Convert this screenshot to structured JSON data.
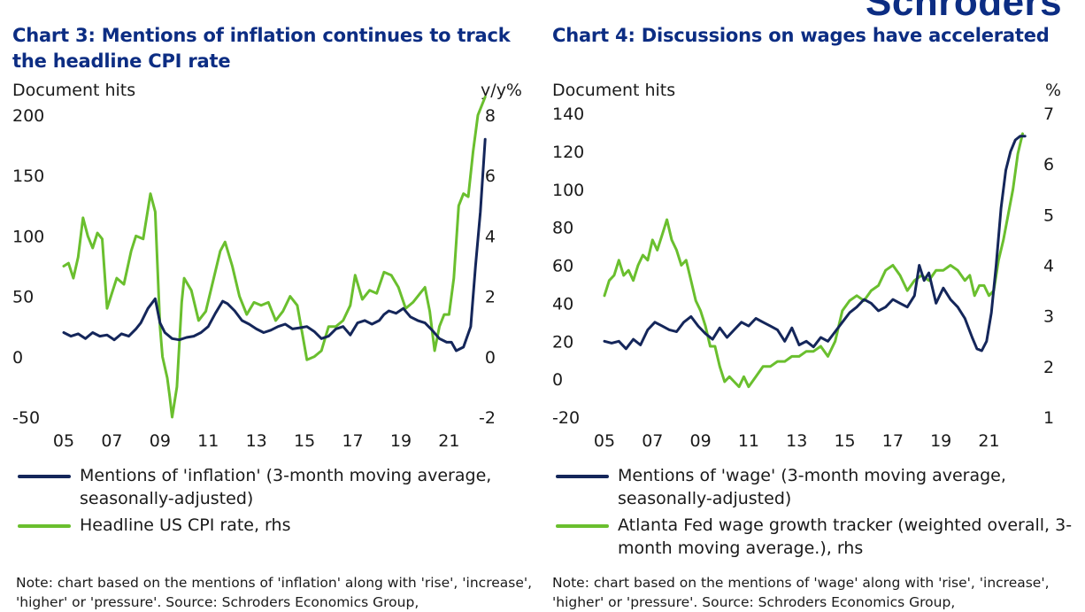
{
  "brand": {
    "logo_text": "Schroders"
  },
  "colors": {
    "title": "#0c2d83",
    "navy": "#14265a",
    "green": "#6abf2e"
  },
  "chart_data": [
    {
      "type": "line",
      "title": "Chart 3: Mentions of inflation continues to track the headline CPI rate",
      "ylabel_left": "Document hits",
      "ylabel_right": "y/y%",
      "ylim_left": [
        -50,
        200
      ],
      "ylim_right": [
        -2,
        8
      ],
      "yticks_left": [
        -50,
        0,
        50,
        100,
        150,
        200
      ],
      "yticks_right": [
        -2,
        0,
        2,
        4,
        6,
        8
      ],
      "xlim": [
        2005,
        2022.75
      ],
      "xticks": [
        "05",
        "07",
        "09",
        "11",
        "13",
        "15",
        "17",
        "19",
        "21"
      ],
      "xtick_values": [
        2005,
        2007,
        2009,
        2011,
        2013,
        2015,
        2017,
        2019,
        2021
      ],
      "series": [
        {
          "name": "Mentions of 'inflation' (3-month moving average, seasonally-adjusted)",
          "axis": "left",
          "color": "#14265a",
          "x": [
            2005.0,
            2005.3,
            2005.6,
            2005.9,
            2006.2,
            2006.5,
            2006.8,
            2007.1,
            2007.4,
            2007.7,
            2008.0,
            2008.2,
            2008.5,
            2008.8,
            2009.0,
            2009.2,
            2009.5,
            2009.8,
            2010.1,
            2010.4,
            2010.7,
            2011.0,
            2011.3,
            2011.6,
            2011.8,
            2012.1,
            2012.4,
            2012.7,
            2013.0,
            2013.3,
            2013.6,
            2013.9,
            2014.2,
            2014.5,
            2014.8,
            2015.1,
            2015.4,
            2015.7,
            2016.0,
            2016.3,
            2016.6,
            2016.9,
            2017.2,
            2017.5,
            2017.8,
            2018.1,
            2018.3,
            2018.5,
            2018.8,
            2019.1,
            2019.4,
            2019.7,
            2020.0,
            2020.3,
            2020.6,
            2020.9,
            2021.1,
            2021.3,
            2021.6,
            2021.9,
            2022.1,
            2022.3,
            2022.5
          ],
          "values": [
            20,
            17,
            19,
            15,
            20,
            17,
            18,
            14,
            19,
            17,
            23,
            28,
            40,
            48,
            28,
            20,
            15,
            14,
            16,
            17,
            20,
            25,
            36,
            46,
            44,
            38,
            30,
            27,
            23,
            20,
            22,
            25,
            27,
            23,
            24,
            25,
            21,
            15,
            17,
            23,
            25,
            18,
            28,
            30,
            27,
            30,
            35,
            38,
            36,
            40,
            33,
            30,
            28,
            22,
            15,
            12,
            12,
            5,
            8,
            25,
            75,
            120,
            180
          ]
        },
        {
          "name": "Headline US CPI rate, rhs",
          "axis": "right",
          "color": "#6abf2e",
          "x": [
            2005.0,
            2005.2,
            2005.4,
            2005.6,
            2005.8,
            2006.0,
            2006.2,
            2006.4,
            2006.6,
            2006.8,
            2007.0,
            2007.2,
            2007.5,
            2007.8,
            2008.0,
            2008.3,
            2008.6,
            2008.8,
            2009.0,
            2009.1,
            2009.3,
            2009.4,
            2009.5,
            2009.7,
            2009.9,
            2010.0,
            2010.3,
            2010.6,
            2010.9,
            2011.2,
            2011.5,
            2011.7,
            2012.0,
            2012.3,
            2012.6,
            2012.9,
            2013.2,
            2013.5,
            2013.8,
            2014.1,
            2014.4,
            2014.7,
            2014.9,
            2015.1,
            2015.4,
            2015.7,
            2016.0,
            2016.3,
            2016.6,
            2016.9,
            2017.1,
            2017.4,
            2017.7,
            2018.0,
            2018.3,
            2018.6,
            2018.9,
            2019.2,
            2019.5,
            2019.8,
            2020.0,
            2020.2,
            2020.4,
            2020.6,
            2020.8,
            2021.0,
            2021.2,
            2021.4,
            2021.6,
            2021.8,
            2022.0,
            2022.2,
            2022.5
          ],
          "values": [
            3.0,
            3.1,
            2.6,
            3.3,
            4.6,
            4.0,
            3.6,
            4.1,
            3.9,
            1.6,
            2.1,
            2.6,
            2.4,
            3.5,
            4.0,
            3.9,
            5.4,
            4.8,
            1.0,
            0.0,
            -0.7,
            -1.3,
            -2.0,
            -1.0,
            1.8,
            2.6,
            2.2,
            1.2,
            1.5,
            2.5,
            3.5,
            3.8,
            3.0,
            2.0,
            1.4,
            1.8,
            1.7,
            1.8,
            1.2,
            1.5,
            2.0,
            1.7,
            0.8,
            -0.1,
            0.0,
            0.2,
            1.0,
            1.0,
            1.2,
            1.7,
            2.7,
            1.9,
            2.2,
            2.1,
            2.8,
            2.7,
            2.3,
            1.6,
            1.8,
            2.1,
            2.3,
            1.5,
            0.2,
            1.0,
            1.4,
            1.4,
            2.6,
            5.0,
            5.4,
            5.3,
            6.8,
            8.0,
            8.6
          ]
        }
      ]
    },
    {
      "type": "line",
      "title": "Chart 4: Discussions on wages have accelerated",
      "ylabel_left": "Document hits",
      "ylabel_right": "%",
      "ylim_left": [
        -20,
        140
      ],
      "ylim_right": [
        1,
        7
      ],
      "yticks_left": [
        -20,
        0,
        20,
        40,
        60,
        80,
        100,
        120,
        140
      ],
      "yticks_right": [
        1,
        2,
        3,
        4,
        5,
        6,
        7
      ],
      "xlim": [
        2005,
        2022.75
      ],
      "xticks": [
        "05",
        "07",
        "09",
        "11",
        "13",
        "15",
        "17",
        "19",
        "21"
      ],
      "xtick_values": [
        2005,
        2007,
        2009,
        2011,
        2013,
        2015,
        2017,
        2019,
        2021
      ],
      "series": [
        {
          "name": "Mentions of 'wage' (3-month moving average, seasonally-adjusted)",
          "axis": "left",
          "color": "#14265a",
          "x": [
            2005.0,
            2005.3,
            2005.6,
            2005.9,
            2006.2,
            2006.5,
            2006.8,
            2007.1,
            2007.4,
            2007.7,
            2008.0,
            2008.3,
            2008.6,
            2008.9,
            2009.2,
            2009.5,
            2009.8,
            2010.1,
            2010.4,
            2010.7,
            2011.0,
            2011.3,
            2011.6,
            2011.9,
            2012.2,
            2012.5,
            2012.8,
            2013.1,
            2013.4,
            2013.7,
            2014.0,
            2014.3,
            2014.6,
            2014.9,
            2015.2,
            2015.5,
            2015.8,
            2016.1,
            2016.4,
            2016.7,
            2017.0,
            2017.3,
            2017.6,
            2017.9,
            2018.1,
            2018.3,
            2018.5,
            2018.8,
            2019.1,
            2019.4,
            2019.7,
            2020.0,
            2020.3,
            2020.5,
            2020.7,
            2020.9,
            2021.1,
            2021.3,
            2021.5,
            2021.7,
            2021.9,
            2022.1,
            2022.3,
            2022.5
          ],
          "values": [
            20,
            19,
            20,
            16,
            21,
            18,
            26,
            30,
            28,
            26,
            25,
            30,
            33,
            28,
            24,
            21,
            27,
            22,
            26,
            30,
            28,
            32,
            30,
            28,
            26,
            20,
            27,
            18,
            20,
            17,
            22,
            20,
            25,
            30,
            35,
            38,
            42,
            40,
            36,
            38,
            42,
            40,
            38,
            44,
            60,
            52,
            56,
            40,
            48,
            42,
            38,
            32,
            22,
            16,
            15,
            20,
            35,
            60,
            90,
            110,
            120,
            126,
            128,
            128
          ]
        },
        {
          "name": "Atlanta Fed wage growth tracker (weighted overall, 3-month moving average.), rhs",
          "axis": "right",
          "color": "#6abf2e",
          "x": [
            2005.0,
            2005.2,
            2005.4,
            2005.6,
            2005.8,
            2006.0,
            2006.2,
            2006.4,
            2006.6,
            2006.8,
            2007.0,
            2007.2,
            2007.4,
            2007.6,
            2007.8,
            2008.0,
            2008.2,
            2008.4,
            2008.6,
            2008.8,
            2009.0,
            2009.2,
            2009.4,
            2009.6,
            2009.8,
            2010.0,
            2010.2,
            2010.4,
            2010.6,
            2010.8,
            2011.0,
            2011.3,
            2011.6,
            2011.9,
            2012.2,
            2012.5,
            2012.8,
            2013.1,
            2013.4,
            2013.7,
            2014.0,
            2014.3,
            2014.6,
            2014.9,
            2015.2,
            2015.5,
            2015.8,
            2016.1,
            2016.4,
            2016.7,
            2017.0,
            2017.3,
            2017.6,
            2017.9,
            2018.2,
            2018.5,
            2018.8,
            2019.1,
            2019.4,
            2019.7,
            2020.0,
            2020.2,
            2020.4,
            2020.6,
            2020.8,
            2021.0,
            2021.2,
            2021.4,
            2021.6,
            2021.8,
            2022.0,
            2022.2,
            2022.4
          ],
          "values": [
            3.4,
            3.7,
            3.8,
            4.1,
            3.8,
            3.9,
            3.7,
            4.0,
            4.2,
            4.1,
            4.5,
            4.3,
            4.6,
            4.9,
            4.5,
            4.3,
            4.0,
            4.1,
            3.7,
            3.3,
            3.1,
            2.8,
            2.4,
            2.4,
            2.0,
            1.7,
            1.8,
            1.7,
            1.6,
            1.8,
            1.6,
            1.8,
            2.0,
            2.0,
            2.1,
            2.1,
            2.2,
            2.2,
            2.3,
            2.3,
            2.4,
            2.2,
            2.5,
            3.1,
            3.3,
            3.4,
            3.3,
            3.5,
            3.6,
            3.9,
            4.0,
            3.8,
            3.5,
            3.7,
            3.8,
            3.7,
            3.9,
            3.9,
            4.0,
            3.9,
            3.7,
            3.8,
            3.4,
            3.6,
            3.6,
            3.4,
            3.5,
            4.1,
            4.5,
            5.0,
            5.5,
            6.2,
            6.6
          ]
        }
      ]
    }
  ],
  "legend": {
    "chart3": [
      "Mentions of 'inflation' (3-month moving average, seasonally-adjusted)",
      "Headline US CPI rate, rhs"
    ],
    "chart4": [
      "Mentions of 'wage' (3-month moving average, seasonally-adjusted)",
      "Atlanta Fed wage growth tracker (weighted overall, 3-month moving average.), rhs"
    ]
  },
  "notes": {
    "chart3": "Note: chart based on the mentions of 'inflation' along with 'rise', 'increase', 'higher' or 'pressure'. Source: Schroders Economics Group,",
    "chart4": "Note: chart based on the mentions of 'wage' along with 'rise', 'increase', 'higher' or 'pressure'. Source: Schroders Economics Group,"
  }
}
